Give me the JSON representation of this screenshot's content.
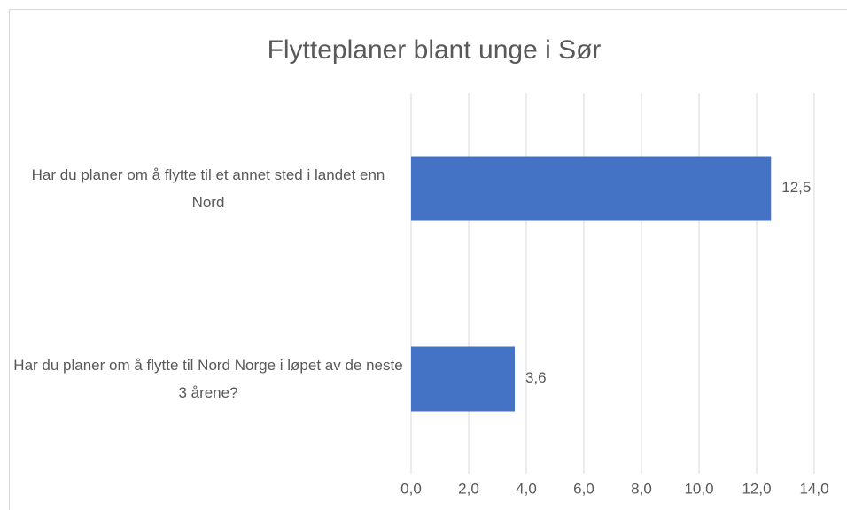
{
  "chart_data": {
    "type": "barh",
    "title": "Flytteplaner blant unge i Sør",
    "categories": [
      "Har du planer om å flytte til et annet sted i landet enn Nord",
      "Har du planer om å flytte til Nord Norge i løpet av de neste 3 årene?"
    ],
    "values": [
      12.5,
      3.6
    ],
    "value_labels": [
      "12,5",
      "3,6"
    ],
    "color": "#4472c4",
    "xlim": [
      0,
      14
    ],
    "xticks": [
      {
        "value": 0,
        "label": "0,0"
      },
      {
        "value": 2,
        "label": "2,0"
      },
      {
        "value": 4,
        "label": "4,0"
      },
      {
        "value": 6,
        "label": "6,0"
      },
      {
        "value": 8,
        "label": "8,0"
      },
      {
        "value": 10,
        "label": "10,0"
      },
      {
        "value": 12,
        "label": "12,0"
      },
      {
        "value": 14,
        "label": "14,0"
      }
    ],
    "grid": true
  }
}
